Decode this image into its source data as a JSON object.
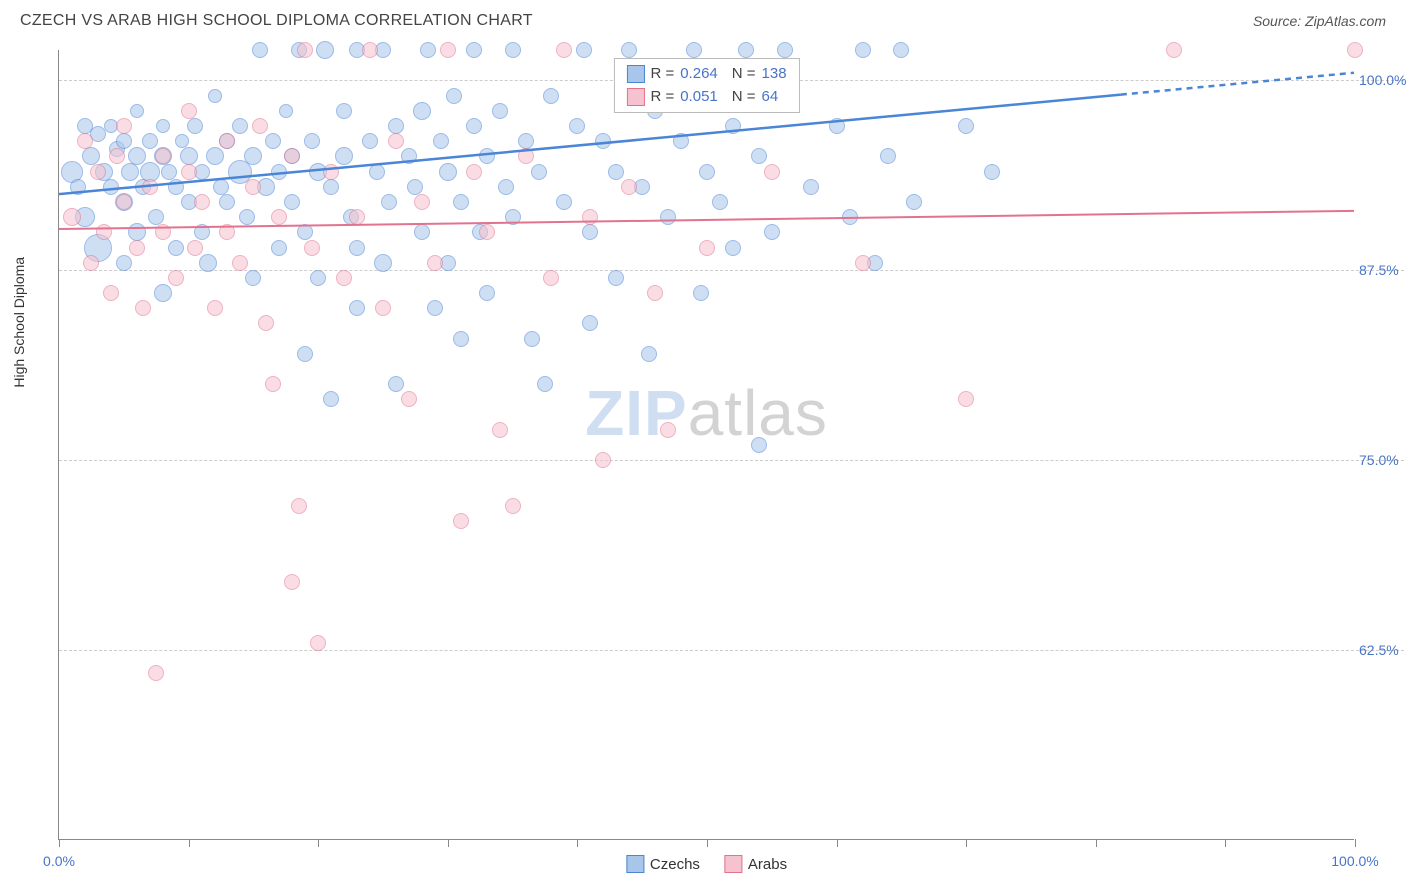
{
  "header": {
    "title": "CZECH VS ARAB HIGH SCHOOL DIPLOMA CORRELATION CHART",
    "source": "Source: ZipAtlas.com"
  },
  "watermark": {
    "part1": "ZIP",
    "part2": "atlas"
  },
  "chart": {
    "type": "scatter",
    "background_color": "#ffffff",
    "grid_color": "#cccccc",
    "axis_color": "#888888",
    "y_axis_title": "High School Diploma",
    "xlim": [
      0,
      100
    ],
    "ylim": [
      50,
      102
    ],
    "x_ticks": [
      0,
      10,
      20,
      30,
      40,
      50,
      60,
      70,
      80,
      90,
      100
    ],
    "x_tick_labels": {
      "0": "0.0%",
      "100": "100.0%"
    },
    "y_gridlines": [
      62.5,
      75.0,
      87.5,
      100.0
    ],
    "y_tick_labels": {
      "62.5": "62.5%",
      "75.0": "75.0%",
      "87.5": "87.5%",
      "100.0": "100.0%"
    },
    "axis_label_color": "#4874c8",
    "axis_label_fontsize": 14,
    "marker_stroke_width": 1.2,
    "series": [
      {
        "id": "czechs",
        "name": "Czechs",
        "fill_color": "#a8c5ea",
        "stroke_color": "#4a85d6",
        "fill_opacity": 0.55,
        "R": "0.264",
        "N": "138",
        "trend": {
          "y_at_x0": 92.5,
          "y_at_x100": 100.5,
          "solid_until_x": 82,
          "line_width": 2.5,
          "dash_after": "6,5"
        },
        "points": [
          {
            "x": 1,
            "y": 94,
            "r": 11
          },
          {
            "x": 1.5,
            "y": 93,
            "r": 8
          },
          {
            "x": 2,
            "y": 97,
            "r": 8
          },
          {
            "x": 2,
            "y": 91,
            "r": 10
          },
          {
            "x": 2.5,
            "y": 95,
            "r": 9
          },
          {
            "x": 3,
            "y": 96.5,
            "r": 8
          },
          {
            "x": 3,
            "y": 89,
            "r": 14
          },
          {
            "x": 3.5,
            "y": 94,
            "r": 9
          },
          {
            "x": 4,
            "y": 93,
            "r": 8
          },
          {
            "x": 4,
            "y": 97,
            "r": 7
          },
          {
            "x": 4.5,
            "y": 95.5,
            "r": 8
          },
          {
            "x": 5,
            "y": 92,
            "r": 9
          },
          {
            "x": 5,
            "y": 96,
            "r": 8
          },
          {
            "x": 5,
            "y": 88,
            "r": 8
          },
          {
            "x": 5.5,
            "y": 94,
            "r": 9
          },
          {
            "x": 6,
            "y": 95,
            "r": 9
          },
          {
            "x": 6,
            "y": 98,
            "r": 7
          },
          {
            "x": 6,
            "y": 90,
            "r": 9
          },
          {
            "x": 6.5,
            "y": 93,
            "r": 8
          },
          {
            "x": 7,
            "y": 94,
            "r": 10
          },
          {
            "x": 7,
            "y": 96,
            "r": 8
          },
          {
            "x": 7.5,
            "y": 91,
            "r": 8
          },
          {
            "x": 8,
            "y": 95,
            "r": 9
          },
          {
            "x": 8,
            "y": 97,
            "r": 7
          },
          {
            "x": 8,
            "y": 86,
            "r": 9
          },
          {
            "x": 8.5,
            "y": 94,
            "r": 8
          },
          {
            "x": 9,
            "y": 93,
            "r": 8
          },
          {
            "x": 9,
            "y": 89,
            "r": 8
          },
          {
            "x": 9.5,
            "y": 96,
            "r": 7
          },
          {
            "x": 10,
            "y": 95,
            "r": 9
          },
          {
            "x": 10,
            "y": 92,
            "r": 8
          },
          {
            "x": 10.5,
            "y": 97,
            "r": 8
          },
          {
            "x": 11,
            "y": 94,
            "r": 8
          },
          {
            "x": 11,
            "y": 90,
            "r": 8
          },
          {
            "x": 11.5,
            "y": 88,
            "r": 9
          },
          {
            "x": 12,
            "y": 95,
            "r": 9
          },
          {
            "x": 12,
            "y": 99,
            "r": 7
          },
          {
            "x": 12.5,
            "y": 93,
            "r": 8
          },
          {
            "x": 13,
            "y": 92,
            "r": 8
          },
          {
            "x": 13,
            "y": 96,
            "r": 8
          },
          {
            "x": 14,
            "y": 94,
            "r": 12
          },
          {
            "x": 14,
            "y": 97,
            "r": 8
          },
          {
            "x": 14.5,
            "y": 91,
            "r": 8
          },
          {
            "x": 15,
            "y": 95,
            "r": 9
          },
          {
            "x": 15,
            "y": 87,
            "r": 8
          },
          {
            "x": 15.5,
            "y": 102,
            "r": 8
          },
          {
            "x": 16,
            "y": 93,
            "r": 9
          },
          {
            "x": 16.5,
            "y": 96,
            "r": 8
          },
          {
            "x": 17,
            "y": 94,
            "r": 8
          },
          {
            "x": 17,
            "y": 89,
            "r": 8
          },
          {
            "x": 17.5,
            "y": 98,
            "r": 7
          },
          {
            "x": 18,
            "y": 92,
            "r": 8
          },
          {
            "x": 18,
            "y": 95,
            "r": 8
          },
          {
            "x": 18.5,
            "y": 102,
            "r": 8
          },
          {
            "x": 19,
            "y": 90,
            "r": 8
          },
          {
            "x": 19,
            "y": 82,
            "r": 8
          },
          {
            "x": 19.5,
            "y": 96,
            "r": 8
          },
          {
            "x": 20,
            "y": 94,
            "r": 9
          },
          {
            "x": 20,
            "y": 87,
            "r": 8
          },
          {
            "x": 20.5,
            "y": 102,
            "r": 9
          },
          {
            "x": 21,
            "y": 93,
            "r": 8
          },
          {
            "x": 21,
            "y": 79,
            "r": 8
          },
          {
            "x": 22,
            "y": 95,
            "r": 9
          },
          {
            "x": 22,
            "y": 98,
            "r": 8
          },
          {
            "x": 22.5,
            "y": 91,
            "r": 8
          },
          {
            "x": 23,
            "y": 102,
            "r": 8
          },
          {
            "x": 23,
            "y": 89,
            "r": 8
          },
          {
            "x": 23,
            "y": 85,
            "r": 8
          },
          {
            "x": 24,
            "y": 96,
            "r": 8
          },
          {
            "x": 24.5,
            "y": 94,
            "r": 8
          },
          {
            "x": 25,
            "y": 88,
            "r": 9
          },
          {
            "x": 25,
            "y": 102,
            "r": 8
          },
          {
            "x": 25.5,
            "y": 92,
            "r": 8
          },
          {
            "x": 26,
            "y": 97,
            "r": 8
          },
          {
            "x": 26,
            "y": 80,
            "r": 8
          },
          {
            "x": 27,
            "y": 95,
            "r": 8
          },
          {
            "x": 27.5,
            "y": 93,
            "r": 8
          },
          {
            "x": 28,
            "y": 98,
            "r": 9
          },
          {
            "x": 28,
            "y": 90,
            "r": 8
          },
          {
            "x": 28.5,
            "y": 102,
            "r": 8
          },
          {
            "x": 29,
            "y": 85,
            "r": 8
          },
          {
            "x": 29.5,
            "y": 96,
            "r": 8
          },
          {
            "x": 30,
            "y": 94,
            "r": 9
          },
          {
            "x": 30,
            "y": 88,
            "r": 8
          },
          {
            "x": 30.5,
            "y": 99,
            "r": 8
          },
          {
            "x": 31,
            "y": 92,
            "r": 8
          },
          {
            "x": 31,
            "y": 83,
            "r": 8
          },
          {
            "x": 32,
            "y": 97,
            "r": 8
          },
          {
            "x": 32,
            "y": 102,
            "r": 8
          },
          {
            "x": 32.5,
            "y": 90,
            "r": 8
          },
          {
            "x": 33,
            "y": 95,
            "r": 8
          },
          {
            "x": 33,
            "y": 86,
            "r": 8
          },
          {
            "x": 34,
            "y": 98,
            "r": 8
          },
          {
            "x": 34.5,
            "y": 93,
            "r": 8
          },
          {
            "x": 35,
            "y": 91,
            "r": 8
          },
          {
            "x": 35,
            "y": 102,
            "r": 8
          },
          {
            "x": 36,
            "y": 96,
            "r": 8
          },
          {
            "x": 36.5,
            "y": 83,
            "r": 8
          },
          {
            "x": 37,
            "y": 94,
            "r": 8
          },
          {
            "x": 37.5,
            "y": 80,
            "r": 8
          },
          {
            "x": 38,
            "y": 99,
            "r": 8
          },
          {
            "x": 39,
            "y": 92,
            "r": 8
          },
          {
            "x": 40,
            "y": 97,
            "r": 8
          },
          {
            "x": 40.5,
            "y": 102,
            "r": 8
          },
          {
            "x": 41,
            "y": 90,
            "r": 8
          },
          {
            "x": 41,
            "y": 84,
            "r": 8
          },
          {
            "x": 42,
            "y": 96,
            "r": 8
          },
          {
            "x": 43,
            "y": 94,
            "r": 8
          },
          {
            "x": 43,
            "y": 87,
            "r": 8
          },
          {
            "x": 44,
            "y": 102,
            "r": 8
          },
          {
            "x": 45,
            "y": 93,
            "r": 8
          },
          {
            "x": 45.5,
            "y": 82,
            "r": 8
          },
          {
            "x": 46,
            "y": 98,
            "r": 8
          },
          {
            "x": 47,
            "y": 91,
            "r": 8
          },
          {
            "x": 48,
            "y": 96,
            "r": 8
          },
          {
            "x": 49,
            "y": 102,
            "r": 8
          },
          {
            "x": 49.5,
            "y": 86,
            "r": 8
          },
          {
            "x": 50,
            "y": 94,
            "r": 8
          },
          {
            "x": 51,
            "y": 92,
            "r": 8
          },
          {
            "x": 52,
            "y": 97,
            "r": 8
          },
          {
            "x": 52,
            "y": 89,
            "r": 8
          },
          {
            "x": 53,
            "y": 102,
            "r": 8
          },
          {
            "x": 54,
            "y": 95,
            "r": 8
          },
          {
            "x": 54,
            "y": 76,
            "r": 8
          },
          {
            "x": 55,
            "y": 90,
            "r": 8
          },
          {
            "x": 56,
            "y": 102,
            "r": 8
          },
          {
            "x": 58,
            "y": 93,
            "r": 8
          },
          {
            "x": 60,
            "y": 97,
            "r": 8
          },
          {
            "x": 61,
            "y": 91,
            "r": 8
          },
          {
            "x": 62,
            "y": 102,
            "r": 8
          },
          {
            "x": 63,
            "y": 88,
            "r": 8
          },
          {
            "x": 64,
            "y": 95,
            "r": 8
          },
          {
            "x": 65,
            "y": 102,
            "r": 8
          },
          {
            "x": 66,
            "y": 92,
            "r": 8
          },
          {
            "x": 70,
            "y": 97,
            "r": 8
          },
          {
            "x": 72,
            "y": 94,
            "r": 8
          }
        ]
      },
      {
        "id": "arabs",
        "name": "Arabs",
        "fill_color": "#f6c2cf",
        "stroke_color": "#e2738f",
        "fill_opacity": 0.55,
        "R": "0.051",
        "N": "64",
        "trend": {
          "y_at_x0": 90.2,
          "y_at_x100": 91.4,
          "solid_until_x": 100,
          "line_width": 2,
          "dash_after": ""
        },
        "points": [
          {
            "x": 1,
            "y": 91,
            "r": 9
          },
          {
            "x": 2,
            "y": 96,
            "r": 8
          },
          {
            "x": 2.5,
            "y": 88,
            "r": 8
          },
          {
            "x": 3,
            "y": 94,
            "r": 8
          },
          {
            "x": 3.5,
            "y": 90,
            "r": 8
          },
          {
            "x": 4,
            "y": 86,
            "r": 8
          },
          {
            "x": 4.5,
            "y": 95,
            "r": 8
          },
          {
            "x": 5,
            "y": 92,
            "r": 8
          },
          {
            "x": 5,
            "y": 97,
            "r": 8
          },
          {
            "x": 6,
            "y": 89,
            "r": 8
          },
          {
            "x": 6.5,
            "y": 85,
            "r": 8
          },
          {
            "x": 7,
            "y": 93,
            "r": 8
          },
          {
            "x": 7.5,
            "y": 61,
            "r": 8
          },
          {
            "x": 8,
            "y": 95,
            "r": 8
          },
          {
            "x": 8,
            "y": 90,
            "r": 8
          },
          {
            "x": 9,
            "y": 87,
            "r": 8
          },
          {
            "x": 10,
            "y": 94,
            "r": 8
          },
          {
            "x": 10,
            "y": 98,
            "r": 8
          },
          {
            "x": 10.5,
            "y": 89,
            "r": 8
          },
          {
            "x": 11,
            "y": 92,
            "r": 8
          },
          {
            "x": 12,
            "y": 85,
            "r": 8
          },
          {
            "x": 13,
            "y": 96,
            "r": 8
          },
          {
            "x": 13,
            "y": 90,
            "r": 8
          },
          {
            "x": 14,
            "y": 88,
            "r": 8
          },
          {
            "x": 15,
            "y": 93,
            "r": 8
          },
          {
            "x": 15.5,
            "y": 97,
            "r": 8
          },
          {
            "x": 16,
            "y": 84,
            "r": 8
          },
          {
            "x": 16.5,
            "y": 80,
            "r": 8
          },
          {
            "x": 17,
            "y": 91,
            "r": 8
          },
          {
            "x": 18,
            "y": 67,
            "r": 8
          },
          {
            "x": 18,
            "y": 95,
            "r": 8
          },
          {
            "x": 18.5,
            "y": 72,
            "r": 8
          },
          {
            "x": 19,
            "y": 102,
            "r": 8
          },
          {
            "x": 19.5,
            "y": 89,
            "r": 8
          },
          {
            "x": 20,
            "y": 63,
            "r": 8
          },
          {
            "x": 21,
            "y": 94,
            "r": 8
          },
          {
            "x": 22,
            "y": 87,
            "r": 8
          },
          {
            "x": 23,
            "y": 91,
            "r": 8
          },
          {
            "x": 24,
            "y": 102,
            "r": 8
          },
          {
            "x": 25,
            "y": 85,
            "r": 8
          },
          {
            "x": 26,
            "y": 96,
            "r": 8
          },
          {
            "x": 27,
            "y": 79,
            "r": 8
          },
          {
            "x": 28,
            "y": 92,
            "r": 8
          },
          {
            "x": 29,
            "y": 88,
            "r": 8
          },
          {
            "x": 30,
            "y": 102,
            "r": 8
          },
          {
            "x": 31,
            "y": 71,
            "r": 8
          },
          {
            "x": 32,
            "y": 94,
            "r": 8
          },
          {
            "x": 33,
            "y": 90,
            "r": 8
          },
          {
            "x": 34,
            "y": 77,
            "r": 8
          },
          {
            "x": 35,
            "y": 72,
            "r": 8
          },
          {
            "x": 36,
            "y": 95,
            "r": 8
          },
          {
            "x": 38,
            "y": 87,
            "r": 8
          },
          {
            "x": 39,
            "y": 102,
            "r": 8
          },
          {
            "x": 41,
            "y": 91,
            "r": 8
          },
          {
            "x": 42,
            "y": 75,
            "r": 8
          },
          {
            "x": 44,
            "y": 93,
            "r": 8
          },
          {
            "x": 46,
            "y": 86,
            "r": 8
          },
          {
            "x": 47,
            "y": 77,
            "r": 8
          },
          {
            "x": 50,
            "y": 89,
            "r": 8
          },
          {
            "x": 55,
            "y": 94,
            "r": 8
          },
          {
            "x": 62,
            "y": 88,
            "r": 8
          },
          {
            "x": 70,
            "y": 79,
            "r": 8
          },
          {
            "x": 86,
            "y": 102,
            "r": 8
          },
          {
            "x": 100,
            "y": 102,
            "r": 8
          }
        ]
      }
    ],
    "legend_top": {
      "rows": [
        {
          "series": "czechs",
          "text_R": "R =",
          "text_N": "N ="
        },
        {
          "series": "arabs",
          "text_R": "R =",
          "text_N": "N ="
        }
      ]
    },
    "legend_bottom": [
      {
        "series": "czechs"
      },
      {
        "series": "arabs"
      }
    ]
  }
}
